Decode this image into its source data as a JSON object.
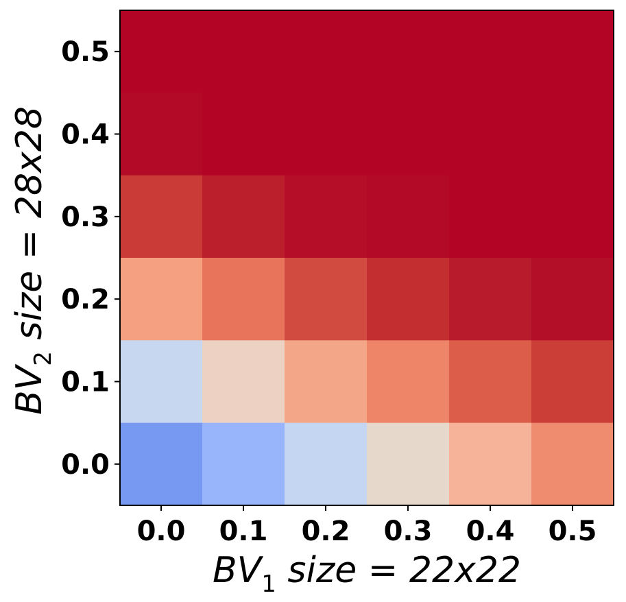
{
  "chart_data": {
    "type": "heatmap",
    "xlabel": {
      "prefix": "BV",
      "sub": "1",
      "rest": " size = 22x22"
    },
    "ylabel": {
      "prefix": "BV",
      "sub": "2",
      "rest": " size = 28x28"
    },
    "x_ticks": [
      "0.0",
      "0.1",
      "0.2",
      "0.3",
      "0.4",
      "0.5"
    ],
    "y_ticks": [
      "0.0",
      "0.1",
      "0.2",
      "0.3",
      "0.4",
      "0.5"
    ],
    "colormap": "coolwarm",
    "rows": [
      {
        "y": "0.5",
        "colors": [
          "#B40426",
          "#B40426",
          "#B40426",
          "#B40426",
          "#B40426",
          "#B40426"
        ]
      },
      {
        "y": "0.4",
        "colors": [
          "#B20A27",
          "#B40426",
          "#B40426",
          "#B40426",
          "#B40426",
          "#B40426"
        ]
      },
      {
        "y": "0.3",
        "colors": [
          "#CA3B37",
          "#BC1F2C",
          "#B50E28",
          "#B30B27",
          "#B40426",
          "#B40426"
        ]
      },
      {
        "y": "0.2",
        "colors": [
          "#F5A081",
          "#E7745B",
          "#D24B40",
          "#C32E31",
          "#B81B2C",
          "#B40F28"
        ]
      },
      {
        "y": "0.1",
        "colors": [
          "#C7D7F0",
          "#EDD1C2",
          "#F4A688",
          "#EE8468",
          "#DC5D4A",
          "#CB3E38"
        ]
      },
      {
        "y": "0.0",
        "colors": [
          "#7799F2",
          "#98B5FC",
          "#C5D6F2",
          "#E6D8CB",
          "#F6B39A",
          "#EF8C6F"
        ]
      }
    ]
  }
}
